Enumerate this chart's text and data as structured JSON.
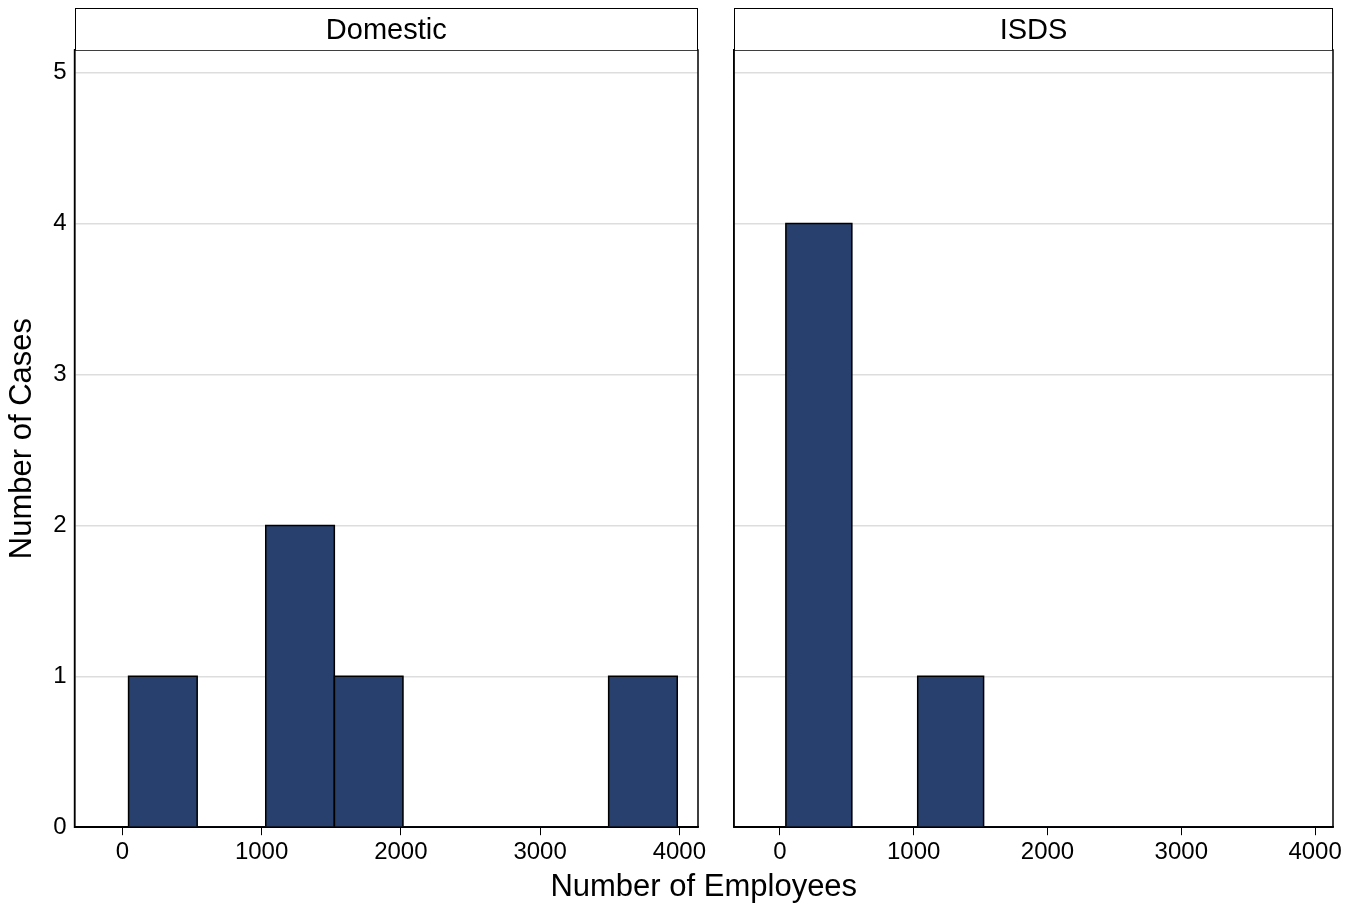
{
  "chart_data": [
    {
      "type": "histogram",
      "title": "Domestic",
      "xlabel": "Number of Employees",
      "ylabel": "Number of Cases",
      "bins": [
        45,
        537.5,
        1030,
        1522.5,
        2015,
        2507.5,
        3000,
        3492.5,
        3985
      ],
      "values": [
        1,
        0,
        2,
        1,
        0,
        0,
        0,
        1
      ],
      "color": "#27406d",
      "xlim": [
        -343,
        4134
      ],
      "xticks": [
        0,
        1000,
        2000,
        3000,
        4000
      ],
      "ylim": [
        0,
        5.15
      ],
      "yticks": [
        0,
        1,
        2,
        3,
        4,
        5
      ],
      "grid": "y",
      "legend": false
    },
    {
      "type": "histogram",
      "title": "ISDS",
      "bins": [
        45,
        537.5,
        1030,
        1522.5,
        2015,
        2507.5,
        3000,
        3492.5,
        3985
      ],
      "values": [
        4,
        0,
        1,
        0,
        0,
        0,
        0,
        0
      ],
      "color": "#27406d",
      "xlim": [
        -343,
        4134
      ],
      "xticks": [
        0,
        1000,
        2000,
        3000,
        4000
      ],
      "ylim": [
        0,
        5.15
      ],
      "yticks": [
        0,
        1,
        2,
        3,
        4,
        5
      ],
      "grid": "y",
      "legend": false,
      "tick_labels": "x"
    }
  ]
}
